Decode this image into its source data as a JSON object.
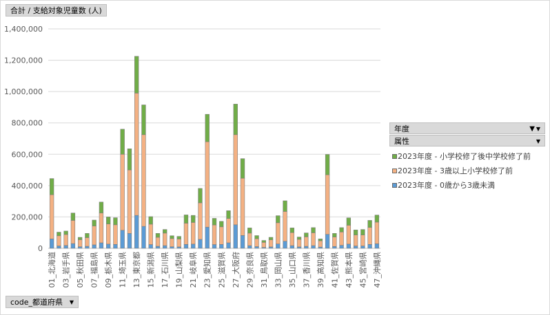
{
  "value_field": "合計 / 支給対象児童数 (人)",
  "row_field": "code_都道府県",
  "legend": {
    "year_label": "年度",
    "attr_label": "属性",
    "items": [
      {
        "label": "2023年度 - 小学校修了後中学校修了前",
        "color": "#70ad47"
      },
      {
        "label": "2023年度 - 3歳以上小学校修了前",
        "color": "#f4b183"
      },
      {
        "label": "2023年度 - 0歳から3歳未満",
        "color": "#5b9bd5"
      }
    ]
  },
  "chart_data": {
    "type": "bar",
    "stacked": true,
    "title": "",
    "xlabel": "",
    "ylabel": "",
    "ylim": [
      0,
      1400000
    ],
    "yticks": [
      "0",
      "200,000",
      "400,000",
      "600,000",
      "800,000",
      "1,000,000",
      "1,200,000",
      "1,400,000"
    ],
    "grid": true,
    "legend_position": "right",
    "categories": [
      "01_北海道",
      "02_青森県",
      "03_岩手県",
      "04_宮城県",
      "05_秋田県",
      "06_山形県",
      "07_福島県",
      "08_茨城県",
      "09_栃木県",
      "10_群馬県",
      "11_埼玉県",
      "12_千葉県",
      "13_東京都",
      "14_神奈川県",
      "15_新潟県",
      "16_富山県",
      "17_石川県",
      "18_福井県",
      "19_山梨県",
      "20_長野県",
      "21_岐阜県",
      "22_静岡県",
      "23_愛知県",
      "24_三重県",
      "25_滋賀県",
      "26_京都府",
      "27_大阪府",
      "28_兵庫県",
      "29_奈良県",
      "30_和歌山県",
      "31_鳥取県",
      "32_島根県",
      "33_岡山県",
      "34_広島県",
      "35_山口県",
      "36_徳島県",
      "37_香川県",
      "38_愛媛県",
      "39_高知県",
      "40_福岡県",
      "41_佐賀県",
      "42_長崎県",
      "43_熊本県",
      "44_大分県",
      "45_宮崎県",
      "46_鹿児島県",
      "47_沖縄県"
    ],
    "visible_labels": [
      "01_北海道",
      "03_岩手県",
      "05_秋田県",
      "07_福島県",
      "09_栃木県",
      "11_埼玉県",
      "13_東京都",
      "15_新潟県",
      "17_石川県",
      "19_山梨県",
      "21_岐阜県",
      "23_愛知県",
      "25_滋賀県",
      "27_大阪府",
      "29_奈良県",
      "31_鳥取県",
      "33_岡山県",
      "35_山口県",
      "37_香川県",
      "39_高知県",
      "41_佐賀県",
      "43_熊本県",
      "45_宮崎県",
      "47_沖縄県"
    ],
    "series": [
      {
        "name": "2023年度 - 0歳から3歳未満",
        "color": "#5b9bd5",
        "values": [
          60000,
          15000,
          18000,
          30000,
          10000,
          13000,
          22000,
          35000,
          27000,
          25000,
          115000,
          95000,
          210000,
          140000,
          24000,
          13000,
          17000,
          10000,
          9000,
          25000,
          27000,
          57000,
          135000,
          24000,
          25000,
          35000,
          150000,
          82000,
          17000,
          11000,
          6000,
          9000,
          28000,
          45000,
          17000,
          9000,
          13000,
          17000,
          8000,
          89000,
          12000,
          19000,
          27000,
          15000,
          15000,
          25000,
          29000
        ]
      },
      {
        "name": "2023年度 - 3歳以上小学校修了前",
        "color": "#f4b183",
        "values": [
          282000,
          65000,
          70000,
          148000,
          45000,
          55000,
          120000,
          190000,
          128000,
          125000,
          485000,
          405000,
          780000,
          585000,
          130000,
          57000,
          80000,
          52000,
          50000,
          135000,
          138000,
          233000,
          545000,
          125000,
          112000,
          155000,
          575000,
          365000,
          80000,
          50000,
          32000,
          45000,
          135000,
          190000,
          83000,
          48000,
          60000,
          82000,
          40000,
          380000,
          60000,
          85000,
          120000,
          70000,
          70000,
          108000,
          138000
        ]
      },
      {
        "name": "2023年度 - 小学校修了後中学校修了前",
        "color": "#70ad47",
        "values": [
          103000,
          23000,
          22000,
          47000,
          15000,
          27000,
          38000,
          70000,
          45000,
          45000,
          160000,
          135000,
          235000,
          190000,
          48000,
          25000,
          23000,
          18000,
          17000,
          53000,
          45000,
          92000,
          175000,
          42000,
          35000,
          50000,
          195000,
          125000,
          33000,
          20000,
          12000,
          16000,
          45000,
          68000,
          30000,
          15000,
          25000,
          33000,
          12000,
          130000,
          23000,
          28000,
          47000,
          32000,
          35000,
          45000,
          45000
        ]
      }
    ]
  }
}
